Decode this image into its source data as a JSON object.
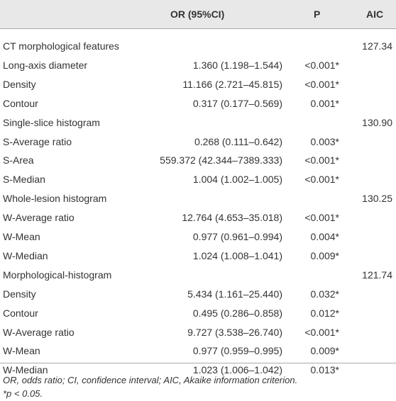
{
  "table": {
    "header": {
      "or": "OR (95%CI)",
      "p": "P",
      "aic": "AIC"
    },
    "groups": [
      {
        "title": "CT morphological features",
        "aic": "127.34",
        "rows": [
          {
            "label": "Long-axis diameter",
            "or": "1.360 (1.198–1.544)",
            "p": "<0.001*"
          },
          {
            "label": "Density",
            "or": "11.166 (2.721–45.815)",
            "p": "<0.001*"
          },
          {
            "label": "Contour",
            "or": "0.317 (0.177–0.569)",
            "p": "0.001*"
          }
        ]
      },
      {
        "title": "Single-slice histogram",
        "aic": "130.90",
        "rows": [
          {
            "label": "S-Average ratio",
            "or": "0.268 (0.111–0.642)",
            "p": "0.003*"
          },
          {
            "label": "S-Area",
            "or": "559.372 (42.344–7389.333)",
            "p": "<0.001*"
          },
          {
            "label": "S-Median",
            "or": "1.004 (1.002–1.005)",
            "p": "<0.001*"
          }
        ]
      },
      {
        "title": "Whole-lesion histogram",
        "aic": "130.25",
        "rows": [
          {
            "label": "W-Average ratio",
            "or": "12.764 (4.653–35.018)",
            "p": "<0.001*"
          },
          {
            "label": "W-Mean",
            "or": "0.977 (0.961–0.994)",
            "p": "0.004*"
          },
          {
            "label": "W-Median",
            "or": "1.024 (1.008–1.041)",
            "p": "0.009*"
          }
        ]
      },
      {
        "title": "Morphological-histogram",
        "aic": "121.74",
        "rows": [
          {
            "label": "Density",
            "or": "5.434 (1.161–25.440)",
            "p": "0.032*"
          },
          {
            "label": "Contour",
            "or": "0.495 (0.286–0.858)",
            "p": "0.012*"
          },
          {
            "label": "W-Average ratio",
            "or": "9.727 (3.538–26.740)",
            "p": "<0.001*"
          },
          {
            "label": "W-Mean",
            "or": "0.977 (0.959–0.995)",
            "p": "0.009*"
          },
          {
            "label": "W-Median",
            "or": "1.023 (1.006–1.042)",
            "p": "0.013*"
          }
        ]
      }
    ],
    "footnotes": [
      "OR, odds ratio; CI, confidence interval; AIC, Akaike information criterion.",
      "*p < 0.05."
    ]
  }
}
